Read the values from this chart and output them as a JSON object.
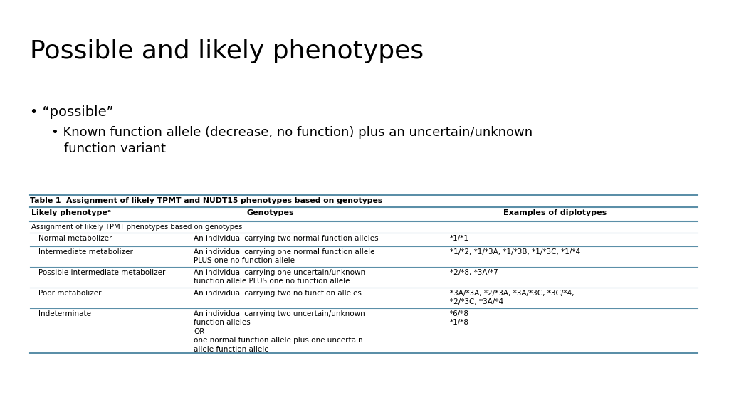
{
  "title": "Possible and likely phenotypes",
  "bullet1": "“possible”",
  "bullet2_line1": "Known function allele (decrease, no function) plus an uncertain/unknown",
  "bullet2_line2": "function variant",
  "table_title": "Table 1  Assignment of likely TPMT and NUDT15 phenotypes based on genotypes",
  "col_headers": [
    "Likely phenotypeᵃ",
    "Genotypes",
    "Examples of diplotypes"
  ],
  "section_header": "Assignment of likely TPMT phenotypes based on genotypes",
  "rows": [
    {
      "phenotype": "Normal metabolizer",
      "genotype": "An individual carrying two normal function alleles",
      "examples": "*1/*1"
    },
    {
      "phenotype": "Intermediate metabolizer",
      "genotype": "An individual carrying one normal function allele\nPLUS one no function allele",
      "examples": "*1/*2, *1/*3A, *1/*3B, *1/*3C, *1/*4"
    },
    {
      "phenotype": "Possible intermediate metabolizer",
      "genotype": "An individual carrying one uncertain/unknown\nfunction allele PLUS one no function allele",
      "examples": "*2/*8, *3A/*7"
    },
    {
      "phenotype": "Poor metabolizer",
      "genotype": "An individual carrying two no function alleles",
      "examples": "*3A/*3A, *2/*3A, *3A/*3C, *3C/*4,\n*2/*3C, *3A/*4"
    },
    {
      "phenotype": "Indeterminate",
      "genotype": "An individual carrying two uncertain/unknown\nfunction alleles\nOR\none normal function allele plus one uncertain\nallele function allele",
      "examples": "*6/*8\n*1/*8"
    }
  ],
  "bg_color": "#ffffff",
  "text_color": "#000000",
  "table_line_color": "#5b8fa8",
  "title_fontsize": 26,
  "bullet1_fontsize": 14,
  "bullet2_fontsize": 13,
  "table_title_fontsize": 7.8,
  "table_fontsize": 7.5,
  "table_header_fontsize": 8.0
}
